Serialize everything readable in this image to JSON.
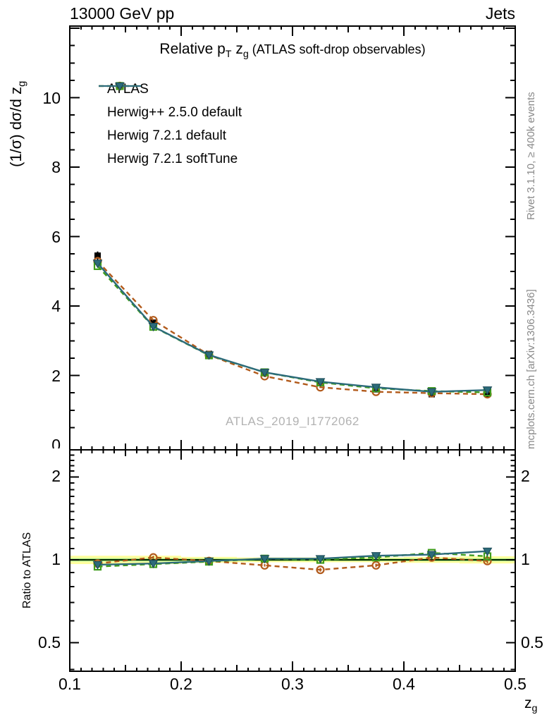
{
  "header": {
    "left_title": "13000 GeV pp",
    "right_title": "Jets"
  },
  "plot_title": {
    "pre": "Relative p",
    "sub1": "T",
    "mid": " z",
    "sub2": "g",
    "paren": " (ATLAS soft-drop observables)"
  },
  "axis_labels": {
    "y_pre": "(1/σ) dσ/d z",
    "y_sub": "g",
    "x_pre": "z",
    "x_sub": "g",
    "ratio_y": "Ratio to ATLAS"
  },
  "side_notes": {
    "top_rotated": "Rivet 3.1.10, ≥ 400k events",
    "bottom_rotated": "mcplots.cern.ch [arXiv:1306.3436]"
  },
  "watermark": "ATLAS_2019_I1772062",
  "colors": {
    "atlas": "#000000",
    "herwigpp": "#b25a1b",
    "h7default": "#3f9c1c",
    "h7soft": "#2c6b7a",
    "h7soft_edge": "#1b4a57",
    "band_yellow": "#ffff9e",
    "band_green_inner": "#d2f5a3",
    "ref_line_green": "#00a000",
    "note_gray": "#8a8a8a",
    "watermark_gray": "#b2b2b2"
  },
  "chart_data": {
    "type": "line",
    "title": "Relative pT zg (ATLAS soft-drop observables)",
    "xlabel": "zg",
    "ylabel": "(1/sigma) dsigma/d zg",
    "xlim": [
      0.1,
      0.5
    ],
    "ylim": [
      0,
      12.2
    ],
    "xticks": [
      0.1,
      0.2,
      0.3,
      0.4,
      0.5
    ],
    "yticks": [
      0,
      2,
      4,
      6,
      8,
      10
    ],
    "legend_position": "top-left-inside",
    "grid": false,
    "x": [
      0.125,
      0.175,
      0.225,
      0.275,
      0.325,
      0.375,
      0.425,
      0.475
    ],
    "bin_edges": [
      0.1,
      0.15,
      0.2,
      0.25,
      0.3,
      0.35,
      0.4,
      0.45,
      0.5
    ],
    "series": [
      {
        "name": "ATLAS",
        "marker": "filled-square",
        "color": "#000000",
        "line": "none",
        "values": [
          5.45,
          3.52,
          2.62,
          2.07,
          1.8,
          1.6,
          1.46,
          1.47
        ],
        "errors": [
          0.12,
          0.08,
          0.05,
          0.04,
          0.04,
          0.04,
          0.05,
          0.05
        ]
      },
      {
        "name": "Herwig++ 2.5.0 default",
        "marker": "open-circle",
        "color": "#b25a1b",
        "line": "dashed",
        "values": [
          5.29,
          3.59,
          2.59,
          1.98,
          1.66,
          1.53,
          1.49,
          1.46
        ]
      },
      {
        "name": "Herwig 7.2.1 default",
        "marker": "open-square",
        "color": "#3f9c1c",
        "line": "dashed",
        "values": [
          5.15,
          3.4,
          2.58,
          2.09,
          1.8,
          1.63,
          1.55,
          1.51
        ]
      },
      {
        "name": "Herwig 7.2.1 softTune",
        "marker": "filled-triangle-down",
        "color": "#2c6b7a",
        "line": "solid",
        "values": [
          5.23,
          3.41,
          2.59,
          2.09,
          1.82,
          1.66,
          1.53,
          1.58
        ]
      }
    ],
    "ratio_panel": {
      "ylabel": "Ratio to ATLAS",
      "scale": "log",
      "ylim": [
        0.4,
        2.5
      ],
      "yticks": [
        0.5,
        1,
        2
      ],
      "reference": 1.0,
      "band_halfwidth": [
        0.035,
        0.035,
        0.025,
        0.02,
        0.02,
        0.02,
        0.025,
        0.03
      ],
      "series": [
        {
          "name": "Herwig++ 2.5.0 default",
          "color": "#b25a1b",
          "values": [
            0.97,
            1.02,
            0.99,
            0.955,
            0.92,
            0.955,
            1.02,
            0.99
          ],
          "errors": [
            0.02,
            0.015,
            0.01,
            0.01,
            0.014,
            0.014,
            0.016,
            0.02
          ]
        },
        {
          "name": "Herwig 7.2.1 default",
          "color": "#3f9c1c",
          "values": [
            0.945,
            0.965,
            0.985,
            1.01,
            1.0,
            1.02,
            1.06,
            1.03
          ],
          "errors": [
            0.015,
            0.012,
            0.008,
            0.008,
            0.01,
            0.012,
            0.014,
            0.018
          ]
        },
        {
          "name": "Herwig 7.2.1 softTune",
          "color": "#2c6b7a",
          "values": [
            0.96,
            0.97,
            0.99,
            1.01,
            1.01,
            1.035,
            1.045,
            1.075
          ],
          "errors": [
            0.015,
            0.012,
            0.008,
            0.008,
            0.01,
            0.012,
            0.014,
            0.018
          ]
        }
      ]
    }
  }
}
